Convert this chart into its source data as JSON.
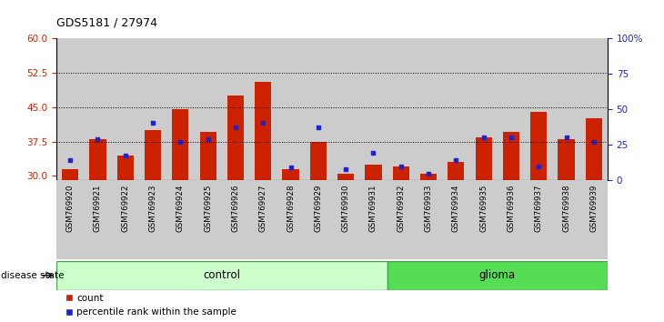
{
  "title": "GDS5181 / 27974",
  "samples": [
    "GSM769920",
    "GSM769921",
    "GSM769922",
    "GSM769923",
    "GSM769924",
    "GSM769925",
    "GSM769926",
    "GSM769927",
    "GSM769928",
    "GSM769929",
    "GSM769930",
    "GSM769931",
    "GSM769932",
    "GSM769933",
    "GSM769934",
    "GSM769935",
    "GSM769936",
    "GSM769937",
    "GSM769938",
    "GSM769939"
  ],
  "red_bar_heights": [
    31.5,
    38.0,
    34.5,
    40.0,
    44.5,
    39.5,
    47.5,
    50.5,
    31.5,
    37.5,
    30.5,
    32.5,
    32.0,
    30.5,
    33.0,
    38.5,
    39.5,
    44.0,
    38.0,
    42.5
  ],
  "blue_dot_values": [
    33.5,
    38.0,
    34.5,
    41.5,
    37.5,
    38.0,
    40.5,
    41.5,
    31.8,
    40.5,
    31.5,
    35.0,
    32.0,
    30.5,
    33.5,
    38.5,
    38.5,
    32.0,
    38.5,
    37.5
  ],
  "control_count": 12,
  "glioma_count": 8,
  "ylim_left": [
    29,
    60
  ],
  "ylim_right": [
    0,
    100
  ],
  "yticks_left": [
    30,
    37.5,
    45,
    52.5,
    60
  ],
  "yticks_right": [
    0,
    25,
    50,
    75,
    100
  ],
  "hlines": [
    37.5,
    45,
    52.5
  ],
  "bar_color": "#cc2200",
  "dot_color": "#2222cc",
  "control_color": "#ccffcc",
  "glioma_color": "#55dd55",
  "col_bg_color": "#cccccc",
  "plot_bg_color": "#ffffff",
  "left_ytick_color": "#cc2200",
  "right_ytick_color": "#2222cc"
}
